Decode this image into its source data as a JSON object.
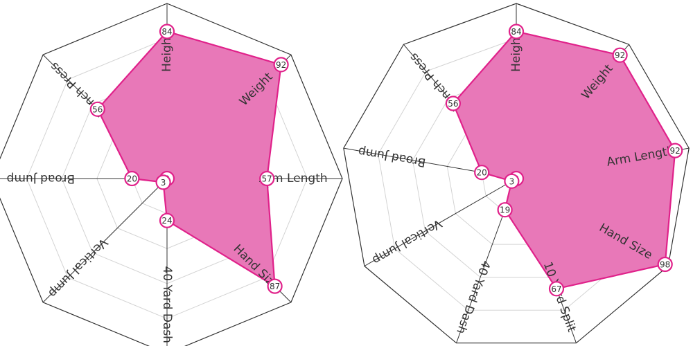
{
  "chart_data": [
    {
      "type": "radar",
      "categories": [
        "Height",
        "Weight",
        "Arm Length",
        "Hand Size",
        "40 Yard Dash",
        "Vertical Jump",
        "Broad Jump",
        "Bench Press"
      ],
      "series": [
        {
          "values": [
            84,
            92,
            57,
            87,
            24,
            3,
            20,
            56
          ]
        }
      ],
      "center_label": "3",
      "rlim": [
        0,
        100
      ],
      "color": "#e0218a",
      "fill_color": "#e878b8",
      "grid": true,
      "legend": "none"
    },
    {
      "type": "radar",
      "categories": [
        "Height",
        "Weight",
        "Arm Length",
        "Hand Size",
        "10 Yard Split",
        "40 Yard Dash",
        "Vertical Jump",
        "Broad Jump",
        "Bench Press"
      ],
      "series": [
        {
          "values": [
            84,
            92,
            92,
            98,
            67,
            19,
            3,
            20,
            56
          ]
        }
      ],
      "center_label": "3",
      "rlim": [
        0,
        100
      ],
      "color": "#e0218a",
      "fill_color": "#e878b8",
      "grid": true,
      "legend": "none"
    }
  ]
}
